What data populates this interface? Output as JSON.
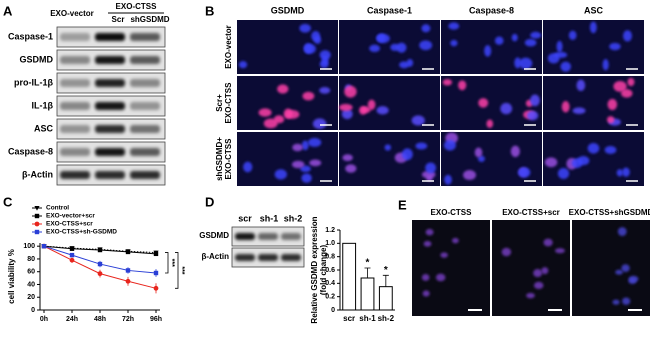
{
  "panels": {
    "A": {
      "label": "A",
      "group_left": "EXO-vector",
      "group_right": "EXO-CTSS",
      "sub_left": "Scr",
      "sub_right": "shGSDMD",
      "rows": [
        "Caspase-1",
        "GSDMD",
        "pro-IL-1β",
        "IL-1β",
        "ASC",
        "Caspase-8",
        "β-Actin"
      ]
    },
    "B": {
      "label": "B",
      "columns": [
        "GSDMD",
        "Caspase-1",
        "Caspase-8",
        "ASC"
      ],
      "rows": [
        [
          "EXO-vector"
        ],
        [
          "Scr+",
          "EXO-CTSS"
        ],
        [
          "shGSDMD+",
          "EXO-CTSS"
        ]
      ]
    },
    "C": {
      "label": "C"
    },
    "D": {
      "label": "D",
      "lanes": [
        "scr",
        "sh-1",
        "sh-2"
      ],
      "rows": [
        "GSDMD",
        "β-Actin"
      ]
    },
    "E": {
      "label": "E",
      "columns": [
        "EXO-CTSS",
        "EXO-CTSS+scr",
        "EXO-CTSS+shGSDMD"
      ]
    }
  },
  "chart_data": [
    {
      "type": "line",
      "categories": [
        "0h",
        "24h",
        "48h",
        "72h",
        "96h"
      ],
      "y_label": "cell viability %",
      "ylim": [
        0,
        105
      ],
      "yticks": [
        0,
        20,
        40,
        60,
        80,
        100
      ],
      "legend": "upper left",
      "annotations": [
        "***",
        "***"
      ],
      "series": [
        {
          "name": "Control",
          "color": "#000000",
          "marker": "triangle-down",
          "dash": true,
          "values": [
            100,
            97,
            95,
            92,
            90
          ],
          "errors": [
            0,
            2,
            2,
            3,
            3
          ]
        },
        {
          "name": "EXO-vector+scr",
          "color": "#000000",
          "marker": "square",
          "dash": false,
          "values": [
            100,
            96,
            94,
            91,
            88
          ],
          "errors": [
            0,
            2,
            3,
            3,
            3
          ]
        },
        {
          "name": "EXO-CTSS+scr",
          "color": "#e8251d",
          "marker": "circle",
          "dash": false,
          "values": [
            100,
            78,
            57,
            45,
            34
          ],
          "errors": [
            0,
            4,
            6,
            7,
            8
          ]
        },
        {
          "name": "EXO-CTSS+sh-GSDMD",
          "color": "#2a3fd6",
          "marker": "square",
          "dash": false,
          "values": [
            100,
            86,
            72,
            62,
            58
          ],
          "errors": [
            0,
            3,
            5,
            5,
            6
          ]
        }
      ]
    },
    {
      "type": "bar",
      "categories": [
        "scr",
        "sh-1",
        "sh-2"
      ],
      "y_label": [
        "Relative GSDMD expression",
        "(fold change)"
      ],
      "values": [
        1,
        0.48,
        0.35
      ],
      "errors": [
        0,
        0.15,
        0.17
      ],
      "significance": [
        null,
        "*",
        "*"
      ],
      "color": "#ffffff",
      "ylim": [
        0,
        1.2
      ],
      "yticks": [
        0,
        0.2,
        0.4,
        0.6,
        0.8,
        {
          "value": 1,
          "label": "1.0"
        },
        1.2
      ]
    }
  ]
}
